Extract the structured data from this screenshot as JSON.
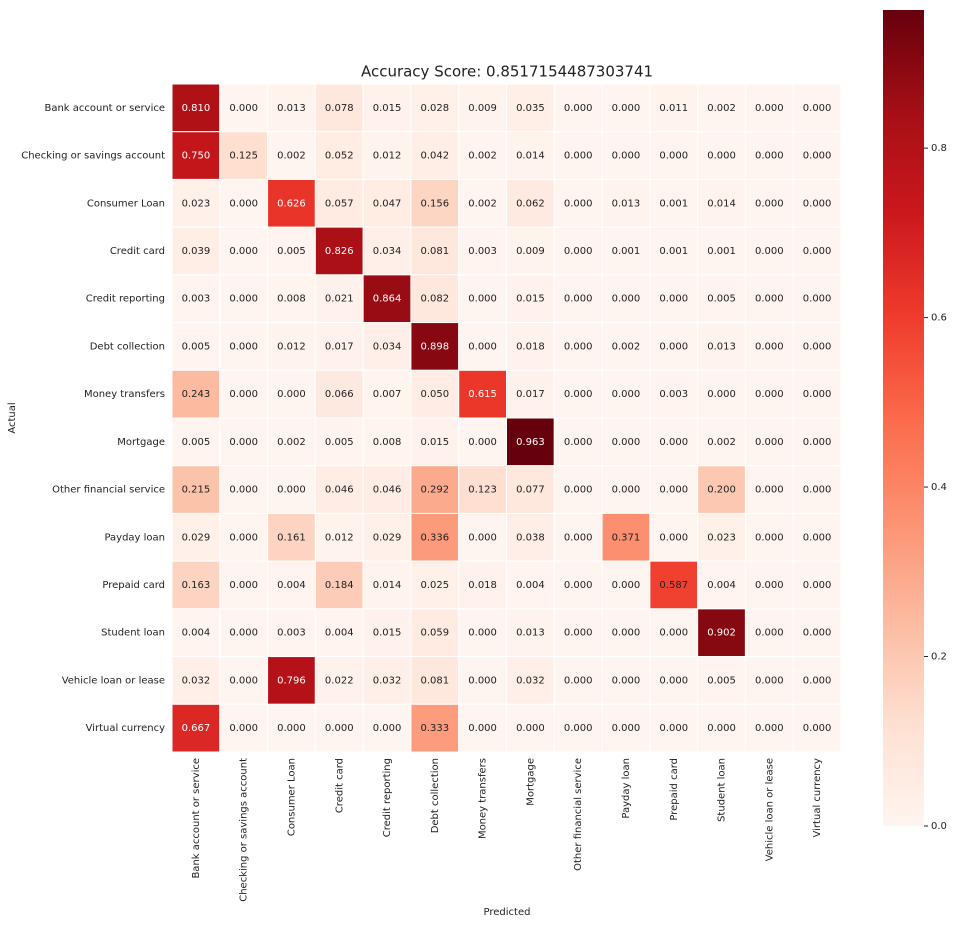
{
  "chart_data": {
    "type": "heatmap",
    "title": "Accuracy Score: 0.8517154487303741",
    "x_label": "Predicted",
    "y_label": "Actual",
    "x_categories": [
      "Bank account or service",
      "Checking or savings account",
      "Consumer Loan",
      "Credit card",
      "Credit reporting",
      "Debt collection",
      "Money transfers",
      "Mortgage",
      "Other financial service",
      "Payday loan",
      "Prepaid card",
      "Student loan",
      "Vehicle loan or lease",
      "Virtual currency"
    ],
    "y_categories": [
      "Bank account or service",
      "Checking or savings account",
      "Consumer Loan",
      "Credit card",
      "Credit reporting",
      "Debt collection",
      "Money transfers",
      "Mortgage",
      "Other financial service",
      "Payday loan",
      "Prepaid card",
      "Student loan",
      "Vehicle loan or lease",
      "Virtual currency"
    ],
    "values": [
      [
        0.81,
        0,
        0.013,
        0.078,
        0.015,
        0.028,
        0.009,
        0.035,
        0,
        0,
        0.011,
        0.002,
        0,
        0
      ],
      [
        0.75,
        0.125,
        0.002,
        0.052,
        0.012,
        0.042,
        0.002,
        0.014,
        0,
        0,
        0,
        0,
        0,
        0
      ],
      [
        0.023,
        0,
        0.626,
        0.057,
        0.047,
        0.156,
        0.002,
        0.062,
        0,
        0.013,
        0.001,
        0.014,
        0,
        0
      ],
      [
        0.039,
        0,
        0.005,
        0.826,
        0.034,
        0.081,
        0.003,
        0.009,
        0,
        0.001,
        0.001,
        0.001,
        0,
        0
      ],
      [
        0.003,
        0,
        0.008,
        0.021,
        0.864,
        0.082,
        0,
        0.015,
        0,
        0,
        0,
        0.005,
        0,
        0
      ],
      [
        0.005,
        0,
        0.012,
        0.017,
        0.034,
        0.898,
        0,
        0.018,
        0,
        0.002,
        0,
        0.013,
        0,
        0
      ],
      [
        0.243,
        0,
        0,
        0.066,
        0.007,
        0.05,
        0.615,
        0.017,
        0,
        0,
        0.003,
        0,
        0,
        0
      ],
      [
        0.005,
        0,
        0.002,
        0.005,
        0.008,
        0.015,
        0,
        0.963,
        0,
        0,
        0,
        0.002,
        0,
        0
      ],
      [
        0.215,
        0,
        0,
        0.046,
        0.046,
        0.292,
        0.123,
        0.077,
        0,
        0,
        0,
        0.2,
        0,
        0
      ],
      [
        0.029,
        0,
        0.161,
        0.012,
        0.029,
        0.336,
        0,
        0.038,
        0,
        0.371,
        0,
        0.023,
        0,
        0
      ],
      [
        0.163,
        0,
        0.004,
        0.184,
        0.014,
        0.025,
        0.018,
        0.004,
        0,
        0,
        0.587,
        0.004,
        0,
        0
      ],
      [
        0.004,
        0,
        0.003,
        0.004,
        0.015,
        0.059,
        0,
        0.013,
        0,
        0,
        0,
        0.902,
        0,
        0
      ],
      [
        0.032,
        0,
        0.796,
        0.022,
        0.032,
        0.081,
        0,
        0.032,
        0,
        0,
        0,
        0.005,
        0,
        0
      ],
      [
        0.667,
        0,
        0,
        0,
        0,
        0.333,
        0,
        0,
        0,
        0,
        0,
        0,
        0,
        0
      ]
    ],
    "value_labels": [
      [
        "0.810",
        "0.000",
        "0.013",
        "0.078",
        "0.015",
        "0.028",
        "0.009",
        "0.035",
        "0.000",
        "0.000",
        "0.011",
        "0.002",
        "0.000",
        "0.000"
      ],
      [
        "0.750",
        "0.125",
        "0.002",
        "0.052",
        "0.012",
        "0.042",
        "0.002",
        "0.014",
        "0.000",
        "0.000",
        "0.000",
        "0.000",
        "0.000",
        "0.000"
      ],
      [
        "0.023",
        "0.000",
        "0.626",
        "0.057",
        "0.047",
        "0.156",
        "0.002",
        "0.062",
        "0.000",
        "0.013",
        "0.001",
        "0.014",
        "0.000",
        "0.000"
      ],
      [
        "0.039",
        "0.000",
        "0.005",
        "0.826",
        "0.034",
        "0.081",
        "0.003",
        "0.009",
        "0.000",
        "0.001",
        "0.001",
        "0.001",
        "0.000",
        "0.000"
      ],
      [
        "0.003",
        "0.000",
        "0.008",
        "0.021",
        "0.864",
        "0.082",
        "0.000",
        "0.015",
        "0.000",
        "0.000",
        "0.000",
        "0.005",
        "0.000",
        "0.000"
      ],
      [
        "0.005",
        "0.000",
        "0.012",
        "0.017",
        "0.034",
        "0.898",
        "0.000",
        "0.018",
        "0.000",
        "0.002",
        "0.000",
        "0.013",
        "0.000",
        "0.000"
      ],
      [
        "0.243",
        "0.000",
        "0.000",
        "0.066",
        "0.007",
        "0.050",
        "0.615",
        "0.017",
        "0.000",
        "0.000",
        "0.003",
        "0.000",
        "0.000",
        "0.000"
      ],
      [
        "0.005",
        "0.000",
        "0.002",
        "0.005",
        "0.008",
        "0.015",
        "0.000",
        "0.963",
        "0.000",
        "0.000",
        "0.000",
        "0.002",
        "0.000",
        "0.000"
      ],
      [
        "0.215",
        "0.000",
        "0.000",
        "0.046",
        "0.046",
        "0.292",
        "0.123",
        "0.077",
        "0.000",
        "0.000",
        "0.000",
        "0.200",
        "0.000",
        "0.000"
      ],
      [
        "0.029",
        "0.000",
        "0.161",
        "0.012",
        "0.029",
        "0.336",
        "0.000",
        "0.038",
        "0.000",
        "0.371",
        "0.000",
        "0.023",
        "0.000",
        "0.000"
      ],
      [
        "0.163",
        "0.000",
        "0.004",
        "0.184",
        "0.014",
        "0.025",
        "0.018",
        "0.004",
        "0.000",
        "0.000",
        "0.587",
        "0.004",
        "0.000",
        "0.000"
      ],
      [
        "0.004",
        "0.000",
        "0.003",
        "0.004",
        "0.015",
        "0.059",
        "0.000",
        "0.013",
        "0.000",
        "0.000",
        "0.000",
        "0.902",
        "0.000",
        "0.000"
      ],
      [
        "0.032",
        "0.000",
        "0.796",
        "0.022",
        "0.032",
        "0.081",
        "0.000",
        "0.032",
        "0.000",
        "0.000",
        "0.000",
        "0.005",
        "0.000",
        "0.000"
      ],
      [
        "0.667",
        "0.000",
        "0.000",
        "0.000",
        "0.000",
        "0.333",
        "0.000",
        "0.000",
        "0.000",
        "0.000",
        "0.000",
        "0.000",
        "0.000",
        "0.000"
      ]
    ],
    "colormap": "Reds",
    "clim": [
      0,
      0.963
    ],
    "cbar_ticks": [
      {
        "value": 0,
        "label": "0.0"
      },
      0.2,
      0.4,
      0.6,
      0.8
    ]
  }
}
